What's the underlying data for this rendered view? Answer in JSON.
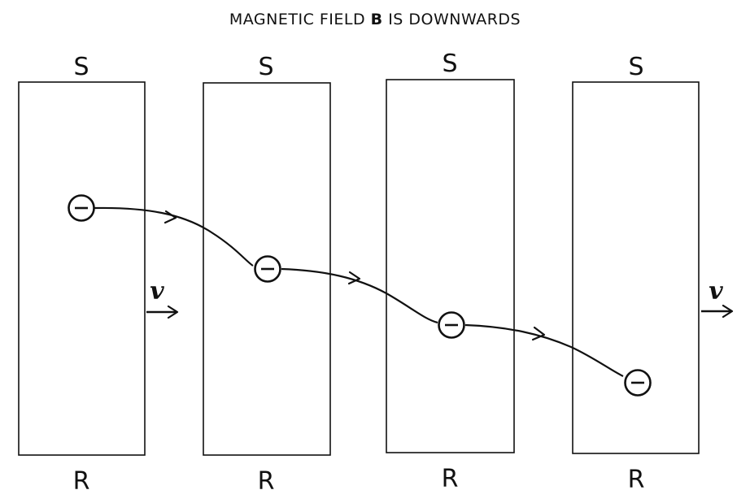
{
  "title": {
    "prefix": "MAGNETIC  FIELD ",
    "symbol": "B",
    "suffix": "  IS  DOWNWARDS"
  },
  "strips": [
    {
      "top_label": "S",
      "bottom_label": "R"
    },
    {
      "top_label": "S",
      "bottom_label": "R"
    },
    {
      "top_label": "S",
      "bottom_label": "R"
    },
    {
      "top_label": "S",
      "bottom_label": "R"
    }
  ],
  "velocity_label": "v",
  "charge_sign": "−",
  "electron_count": 4,
  "colors": {
    "ink": "#111111",
    "background": "#ffffff"
  }
}
